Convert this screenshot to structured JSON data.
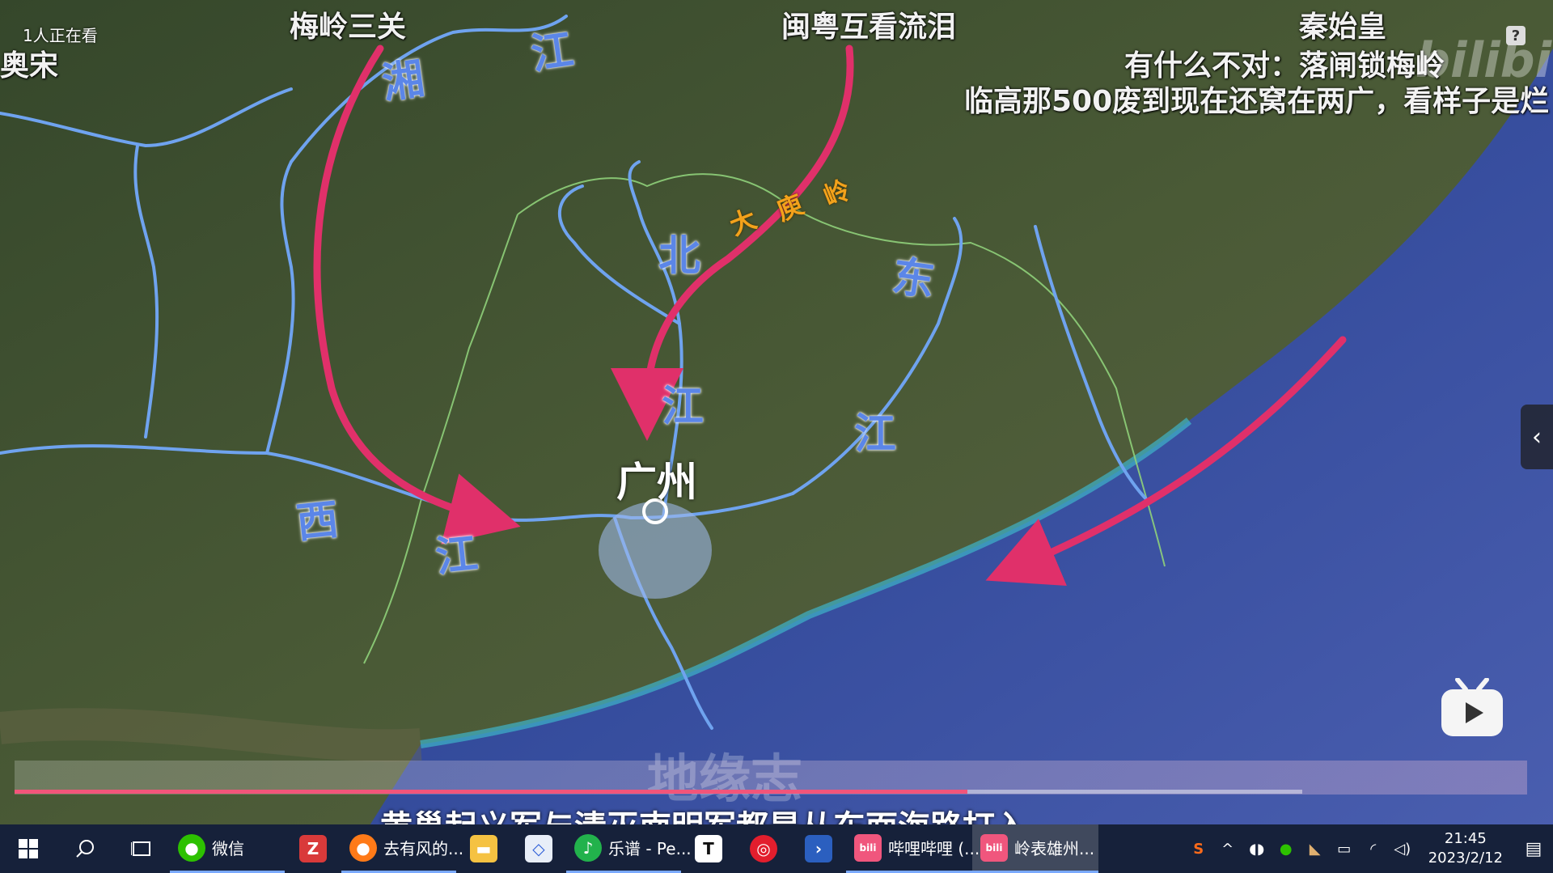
{
  "overlay": {
    "viewers": "1人正在看",
    "danmaku": [
      {
        "text": "梅岭三关",
        "size": 36
      },
      {
        "text": "闽粤互看流泪",
        "size": 36
      },
      {
        "text": "秦始皇",
        "size": 36
      },
      {
        "text": "有什么不对：落闸锁梅岭",
        "size": 36
      },
      {
        "text": "临高那500废到现在还窝在两广，看样子是烂",
        "size": 36
      },
      {
        "text": "奥宋",
        "size": 36
      }
    ],
    "watermark": "地缘志",
    "subtitle": "黄巢起义军与清灭南明军都是从东面海路打入",
    "progress_fraction": 0.74,
    "help": "?",
    "collapse_arrow": "‹",
    "bili_logo": "bilibili"
  },
  "map": {
    "labels": {
      "xiang": "湘",
      "jiang_top": "江",
      "bei": "北",
      "jiang_bei": "江",
      "dong": "东",
      "jiang_dong": "江",
      "xi": "西",
      "jiang_xi": "江",
      "dayuling": [
        "大",
        "庾",
        "岭"
      ],
      "city": "广州"
    },
    "colors": {
      "river": "#6fa3ef",
      "arrow": "#e0306a",
      "border": "#8fd07a",
      "label": "#5b86e8",
      "dayu": "#f3a21b"
    }
  },
  "taskbar": {
    "items": [
      {
        "name": "start",
        "label": "",
        "icon": "windows-icon"
      },
      {
        "name": "search",
        "label": "",
        "icon": "search-icon"
      },
      {
        "name": "taskview",
        "label": "",
        "icon": "taskview-icon"
      },
      {
        "name": "wechat",
        "label": "微信",
        "icon": "wechat-icon"
      },
      {
        "name": "z-app",
        "label": "",
        "icon": "z-app-icon"
      },
      {
        "name": "firefox",
        "label": "去有风的...",
        "icon": "firefox-icon"
      },
      {
        "name": "explorer",
        "label": "",
        "icon": "folder-icon"
      },
      {
        "name": "draw",
        "label": "",
        "icon": "drawing-app-icon"
      },
      {
        "name": "lepu",
        "label": "乐谱 - Pe...",
        "icon": "lepu-icon"
      },
      {
        "name": "typora",
        "label": "",
        "icon": "typora-icon"
      },
      {
        "name": "netease",
        "label": "",
        "icon": "netease-music-icon"
      },
      {
        "name": "powershell",
        "label": "",
        "icon": "powershell-icon"
      },
      {
        "name": "bili1",
        "label": "哔哩哔哩 (...",
        "icon": "bilibili-icon"
      },
      {
        "name": "bili2",
        "label": "岭表雄州...",
        "icon": "bilibili-icon"
      }
    ],
    "tray": {
      "time": "21:45",
      "date": "2023/2/12"
    }
  }
}
